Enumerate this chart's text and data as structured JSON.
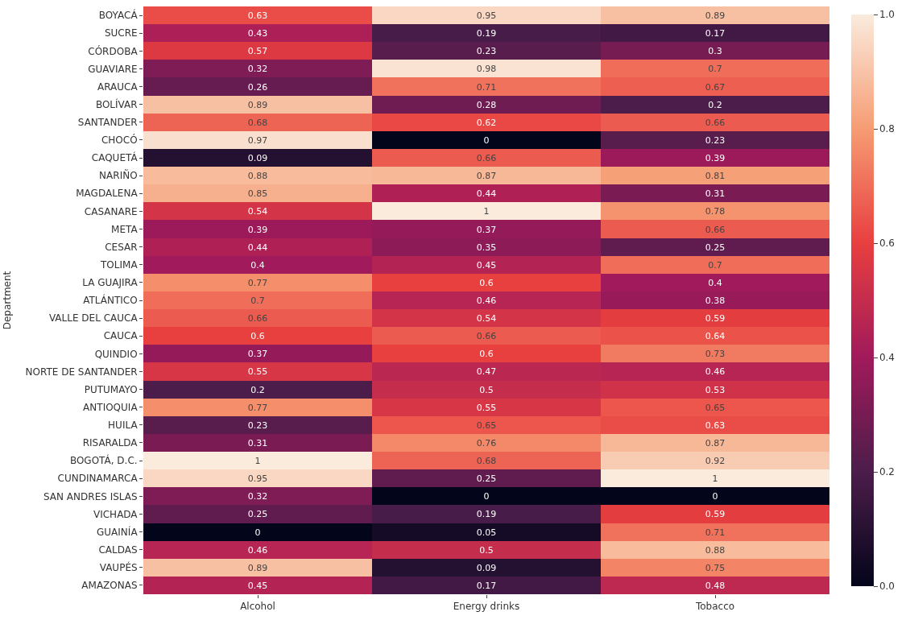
{
  "chart_data": {
    "type": "heatmap",
    "ylabel": "Department",
    "categories": [
      "Alcohol",
      "Energy drinks",
      "Tobacco"
    ],
    "y_categories": [
      "BOYACÁ",
      "SUCRE",
      "CÓRDOBA",
      "GUAVIARE",
      "ARAUCA",
      "BOLÍVAR",
      "SANTANDER",
      "CHOCÓ",
      "CAQUETÁ",
      "NARIÑO",
      "MAGDALENA",
      "CASANARE",
      "META",
      "CESAR",
      "TOLIMA",
      "LA GUAJIRA",
      "ATLÁNTICO",
      "VALLE DEL CAUCA",
      "CAUCA",
      "QUINDIO",
      "NORTE DE SANTANDER",
      "PUTUMAYO",
      "ANTIOQUIA",
      "HUILA",
      "RISARALDA",
      "BOGOTÁ, D.C.",
      "CUNDINAMARCA",
      "SAN ANDRES ISLAS",
      "VICHADA",
      "GUAINÍA",
      "CALDAS",
      "VAUPÉS",
      "AMAZONAS"
    ],
    "cells": [
      [
        0.63,
        0.95,
        0.89
      ],
      [
        0.43,
        0.19,
        0.17
      ],
      [
        0.57,
        0.23,
        0.3
      ],
      [
        0.32,
        0.98,
        0.7
      ],
      [
        0.26,
        0.71,
        0.67
      ],
      [
        0.89,
        0.28,
        0.2
      ],
      [
        0.68,
        0.62,
        0.66
      ],
      [
        0.97,
        0,
        0.23
      ],
      [
        0.09,
        0.66,
        0.39
      ],
      [
        0.88,
        0.87,
        0.81
      ],
      [
        0.85,
        0.44,
        0.31
      ],
      [
        0.54,
        1,
        0.78
      ],
      [
        0.39,
        0.37,
        0.66
      ],
      [
        0.44,
        0.35,
        0.25
      ],
      [
        0.4,
        0.45,
        0.7
      ],
      [
        0.77,
        0.6,
        0.4
      ],
      [
        0.7,
        0.46,
        0.38
      ],
      [
        0.66,
        0.54,
        0.59
      ],
      [
        0.6,
        0.66,
        0.64
      ],
      [
        0.37,
        0.6,
        0.73
      ],
      [
        0.55,
        0.47,
        0.46
      ],
      [
        0.2,
        0.5,
        0.53
      ],
      [
        0.77,
        0.55,
        0.65
      ],
      [
        0.23,
        0.65,
        0.63
      ],
      [
        0.31,
        0.76,
        0.87
      ],
      [
        1,
        0.68,
        0.92
      ],
      [
        0.95,
        0.25,
        1
      ],
      [
        0.32,
        0,
        0
      ],
      [
        0.25,
        0.19,
        0.59
      ],
      [
        0,
        0.05,
        0.71
      ],
      [
        0.46,
        0.5,
        0.88
      ],
      [
        0.89,
        0.09,
        0.75
      ],
      [
        0.45,
        0.17,
        0.48
      ]
    ],
    "clim": [
      0,
      1
    ],
    "cticks": [
      {
        "value": 0,
        "label": "0.0"
      },
      {
        "value": 0.2,
        "label": "0.2"
      },
      {
        "value": 0.4,
        "label": "0.4"
      },
      {
        "value": 0.6,
        "label": "0.6"
      },
      {
        "value": 0.8,
        "label": "0.8"
      },
      {
        "value": 1,
        "label": "1.0"
      }
    ],
    "data_labels": true
  }
}
